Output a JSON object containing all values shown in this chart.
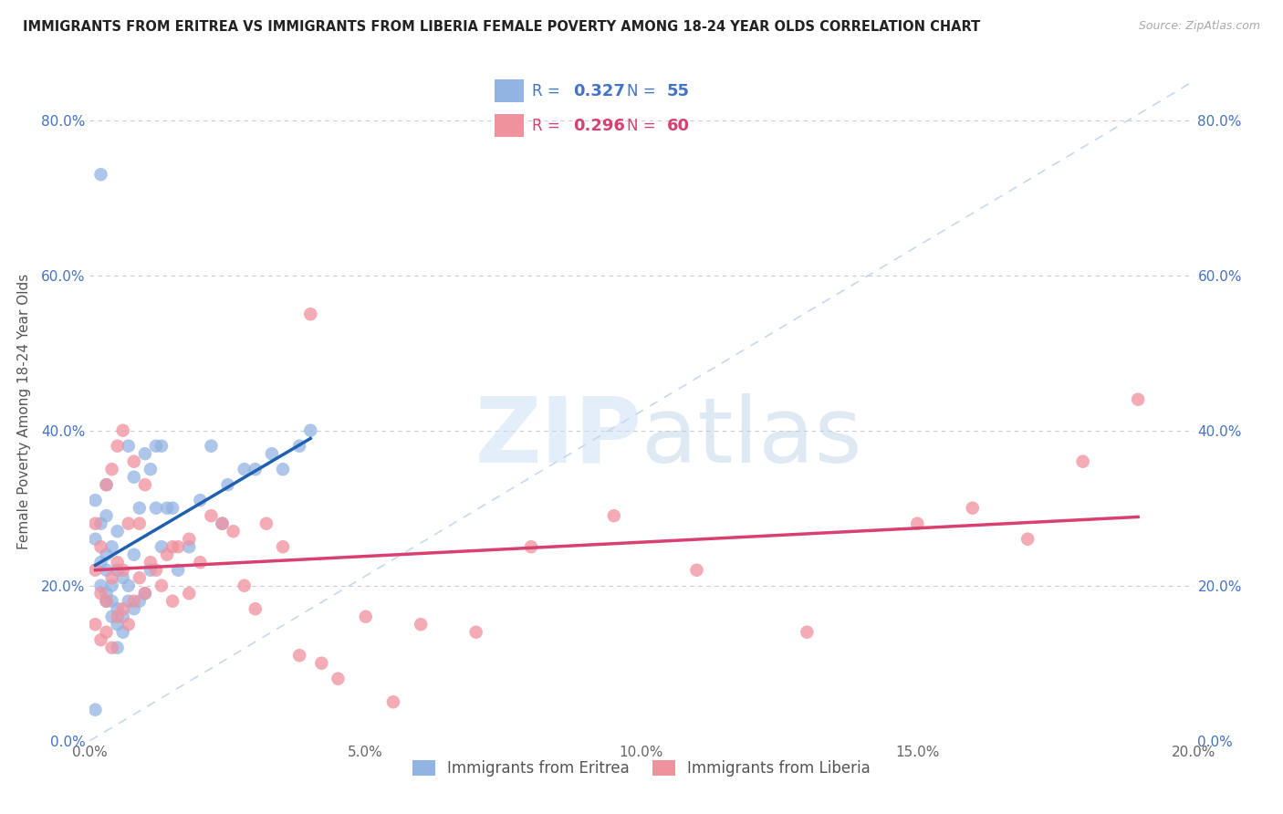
{
  "title": "IMMIGRANTS FROM ERITREA VS IMMIGRANTS FROM LIBERIA FEMALE POVERTY AMONG 18-24 YEAR OLDS CORRELATION CHART",
  "source": "Source: ZipAtlas.com",
  "ylabel": "Female Poverty Among 18-24 Year Olds",
  "legend_labels": [
    "Immigrants from Eritrea",
    "Immigrants from Liberia"
  ],
  "R_eritrea": 0.327,
  "N_eritrea": 55,
  "R_liberia": 0.296,
  "N_liberia": 60,
  "color_eritrea": "#92b4e3",
  "color_liberia": "#f0919e",
  "line_color_eritrea": "#2060b0",
  "line_color_liberia": "#d84070",
  "diagonal_color": "#c8d8ee",
  "xlim": [
    0.0,
    0.2
  ],
  "ylim": [
    0.0,
    0.85
  ],
  "xticks": [
    0.0,
    0.05,
    0.1,
    0.15,
    0.2
  ],
  "yticks": [
    0.0,
    0.2,
    0.4,
    0.6,
    0.8
  ],
  "watermark_zip": "ZIP",
  "watermark_atlas": "atlas",
  "eritrea_x": [
    0.001,
    0.001,
    0.002,
    0.002,
    0.002,
    0.003,
    0.003,
    0.003,
    0.003,
    0.003,
    0.004,
    0.004,
    0.004,
    0.004,
    0.005,
    0.005,
    0.005,
    0.005,
    0.006,
    0.006,
    0.006,
    0.007,
    0.007,
    0.007,
    0.008,
    0.008,
    0.008,
    0.009,
    0.009,
    0.01,
    0.01,
    0.011,
    0.011,
    0.012,
    0.012,
    0.013,
    0.013,
    0.014,
    0.015,
    0.016,
    0.018,
    0.02,
    0.022,
    0.024,
    0.025,
    0.028,
    0.03,
    0.033,
    0.035,
    0.038,
    0.04,
    0.002,
    0.001,
    0.003,
    0.005
  ],
  "eritrea_y": [
    0.26,
    0.31,
    0.2,
    0.23,
    0.28,
    0.18,
    0.19,
    0.22,
    0.24,
    0.29,
    0.16,
    0.18,
    0.2,
    0.25,
    0.15,
    0.17,
    0.22,
    0.27,
    0.14,
    0.16,
    0.21,
    0.18,
    0.2,
    0.38,
    0.17,
    0.24,
    0.34,
    0.18,
    0.3,
    0.19,
    0.37,
    0.22,
    0.35,
    0.3,
    0.38,
    0.25,
    0.38,
    0.3,
    0.3,
    0.22,
    0.25,
    0.31,
    0.38,
    0.28,
    0.33,
    0.35,
    0.35,
    0.37,
    0.35,
    0.38,
    0.4,
    0.73,
    0.04,
    0.33,
    0.12
  ],
  "liberia_x": [
    0.001,
    0.001,
    0.001,
    0.002,
    0.002,
    0.002,
    0.003,
    0.003,
    0.003,
    0.004,
    0.004,
    0.004,
    0.005,
    0.005,
    0.005,
    0.006,
    0.006,
    0.006,
    0.007,
    0.007,
    0.008,
    0.008,
    0.009,
    0.009,
    0.01,
    0.01,
    0.011,
    0.012,
    0.013,
    0.014,
    0.015,
    0.015,
    0.016,
    0.018,
    0.018,
    0.02,
    0.022,
    0.024,
    0.026,
    0.028,
    0.03,
    0.032,
    0.035,
    0.038,
    0.04,
    0.042,
    0.045,
    0.05,
    0.055,
    0.06,
    0.07,
    0.08,
    0.095,
    0.11,
    0.13,
    0.15,
    0.16,
    0.17,
    0.18,
    0.19
  ],
  "liberia_y": [
    0.15,
    0.22,
    0.28,
    0.13,
    0.19,
    0.25,
    0.14,
    0.18,
    0.33,
    0.12,
    0.21,
    0.35,
    0.16,
    0.23,
    0.38,
    0.17,
    0.22,
    0.4,
    0.15,
    0.28,
    0.18,
    0.36,
    0.21,
    0.28,
    0.19,
    0.33,
    0.23,
    0.22,
    0.2,
    0.24,
    0.18,
    0.25,
    0.25,
    0.19,
    0.26,
    0.23,
    0.29,
    0.28,
    0.27,
    0.2,
    0.17,
    0.28,
    0.25,
    0.11,
    0.55,
    0.1,
    0.08,
    0.16,
    0.05,
    0.15,
    0.14,
    0.25,
    0.29,
    0.22,
    0.14,
    0.28,
    0.3,
    0.26,
    0.36,
    0.44
  ],
  "eritrea_line_x": [
    0.001,
    0.04
  ],
  "liberia_line_x": [
    0.001,
    0.19
  ]
}
